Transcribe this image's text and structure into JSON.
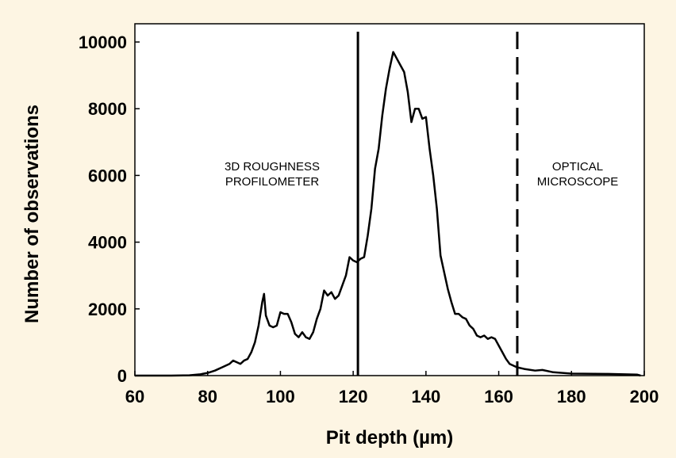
{
  "chart_data": {
    "type": "line",
    "xlabel": "Pit depth (µm)",
    "ylabel": "Number of observations",
    "xlim": [
      60,
      200
    ],
    "xticks": [
      60,
      80,
      100,
      120,
      140,
      160,
      180,
      200
    ],
    "ylim": [
      0,
      10000
    ],
    "yticks": [
      0,
      2000,
      4000,
      6000,
      8000,
      10000
    ],
    "x": [
      60,
      70,
      75,
      78,
      80,
      82,
      84,
      86,
      87,
      88,
      89,
      90,
      91,
      92,
      93,
      94,
      95,
      95.5,
      96,
      97,
      98,
      99,
      100,
      101,
      102,
      103,
      104,
      105,
      106,
      107,
      108,
      109,
      110,
      111,
      112,
      113,
      114,
      115,
      116,
      117,
      118,
      119,
      120,
      121,
      122,
      123,
      124,
      125,
      126,
      127,
      128,
      129,
      130,
      131,
      132,
      133,
      134,
      135,
      136,
      137,
      138,
      139,
      140,
      141,
      142,
      143,
      144,
      145,
      146,
      147,
      148,
      149,
      150,
      151,
      152,
      153,
      154,
      155,
      156,
      157,
      158,
      159,
      160,
      161,
      162,
      163,
      165,
      167,
      170,
      172,
      175,
      180,
      190,
      198,
      199
    ],
    "series": [
      {
        "color": "#000000",
        "values": [
          0,
          0,
          10,
          40,
          80,
          150,
          250,
          350,
          450,
          400,
          350,
          450,
          500,
          700,
          1000,
          1500,
          2200,
          2450,
          1800,
          1500,
          1450,
          1500,
          1900,
          1850,
          1850,
          1600,
          1250,
          1150,
          1300,
          1150,
          1100,
          1300,
          1700,
          2000,
          2550,
          2400,
          2500,
          2300,
          2400,
          2700,
          3000,
          3550,
          3450,
          3400,
          3500,
          3550,
          4200,
          5000,
          6200,
          6800,
          7800,
          8600,
          9200,
          9700,
          9500,
          9300,
          9100,
          8500,
          7600,
          8000,
          8000,
          7700,
          7750,
          6800,
          6000,
          5000,
          3600,
          3100,
          2600,
          2200,
          1850,
          1850,
          1750,
          1700,
          1500,
          1400,
          1200,
          1150,
          1200,
          1100,
          1150,
          1100,
          900,
          700,
          500,
          350,
          250,
          200,
          150,
          170,
          100,
          60,
          50,
          30,
          0
        ]
      }
    ],
    "vlines": [
      {
        "x": 121.3,
        "style": "solid"
      },
      {
        "x": 165.1,
        "style": "dashed"
      }
    ],
    "annotations": [
      [
        "3D ROUGHNESS",
        "PROFILOMETER"
      ],
      [
        "OPTICAL",
        "MICROSCOPE"
      ]
    ]
  }
}
